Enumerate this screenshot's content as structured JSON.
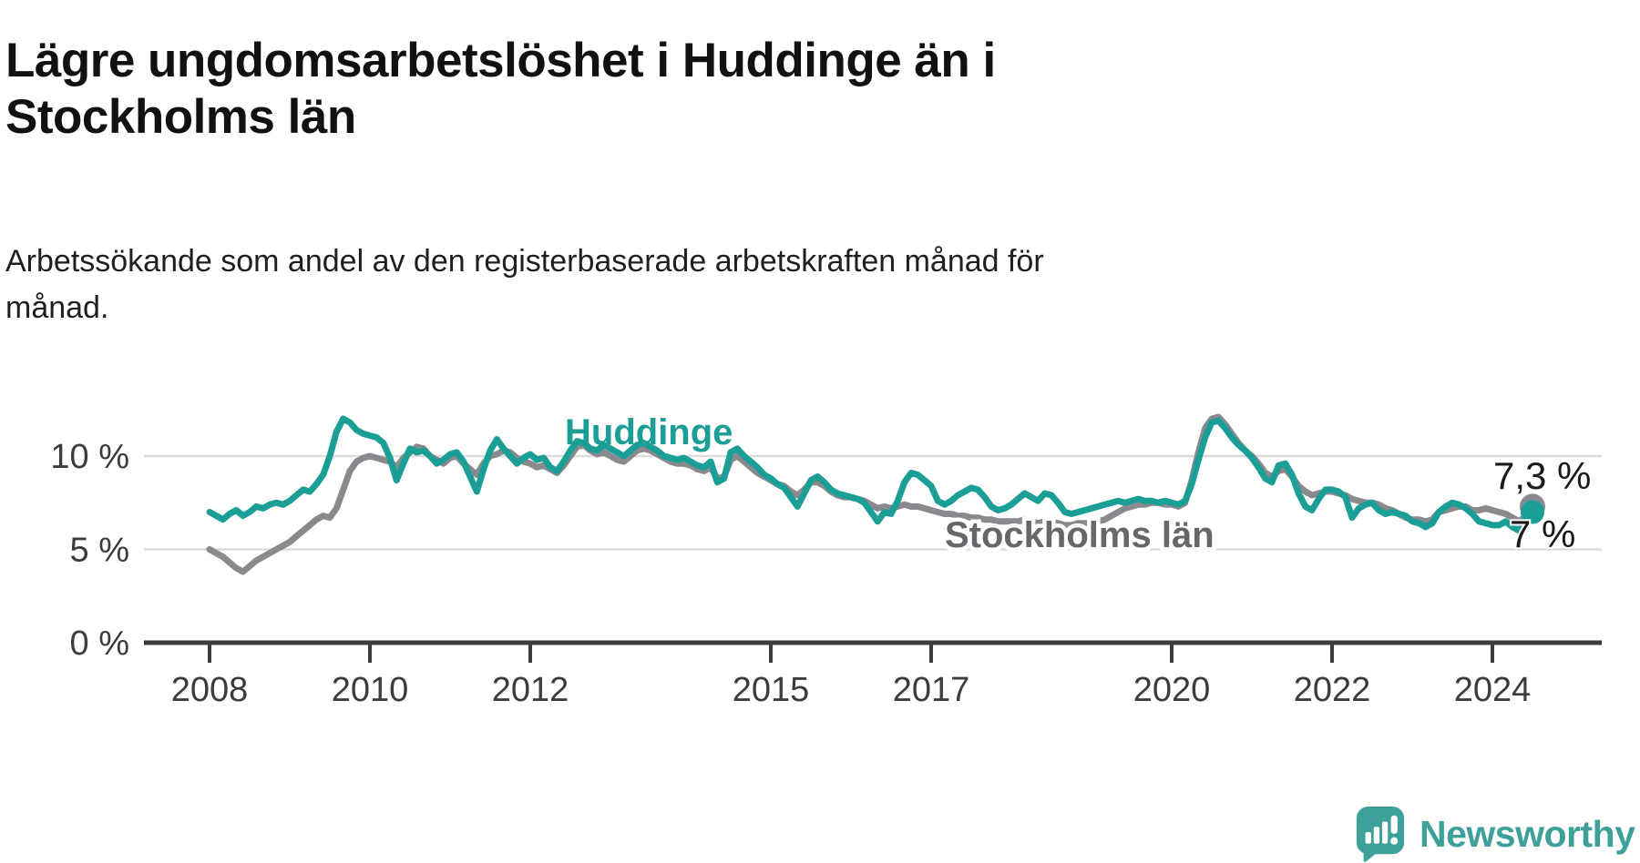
{
  "title": "Lägre ungdomsarbetslöshet i Huddinge än i\nStockholms län",
  "subtitle": "Arbetssökande som andel av den registerbaserade arbetskraften månad för\nmånad.",
  "branding": {
    "logo_text": "Newsworthy",
    "logo_icon": "newsworthy-speech-bubble-chart-icon",
    "logo_color": "#3da19a"
  },
  "chart_data": {
    "type": "line",
    "title": "",
    "xlabel": "",
    "ylabel": "",
    "unit": "%",
    "x_start_year": 2008,
    "x_step_months": 1,
    "x_end": "2024-07",
    "xlim": [
      2007.2,
      2025.3
    ],
    "ylim": [
      0,
      13.5
    ],
    "grid": "horizontal",
    "legend_position": "inline-labels",
    "xticks": [
      2008,
      2010,
      2012,
      2015,
      2017,
      2020,
      2022,
      2024
    ],
    "yticks": [
      {
        "value": 0,
        "label": "0 %"
      },
      {
        "value": 5,
        "label": "5 %"
      },
      {
        "value": 10,
        "label": "10 %"
      }
    ],
    "colors": {
      "grid": "#dcdcdc",
      "axis": "#3b3b3b",
      "tick_text": "#3c3c3c",
      "end_label_text": "#1a1a1a"
    },
    "series": [
      {
        "name": "Stockholms län",
        "color": "#8a8a8e",
        "label_color": "#66666b",
        "end_label": "7,3 %",
        "end_value": 7.3,
        "values": [
          5.0,
          4.8,
          4.6,
          4.3,
          4.0,
          3.8,
          4.1,
          4.4,
          4.6,
          4.8,
          5.0,
          5.2,
          5.4,
          5.7,
          6.0,
          6.3,
          6.6,
          6.8,
          6.7,
          7.2,
          8.2,
          9.2,
          9.7,
          9.9,
          10.0,
          9.9,
          9.8,
          9.7,
          9.4,
          9.9,
          10.2,
          10.5,
          10.4,
          10.0,
          9.8,
          9.6,
          9.9,
          10.0,
          9.6,
          9.3,
          9.0,
          9.6,
          10.0,
          10.1,
          10.3,
          10.2,
          9.9,
          9.7,
          9.6,
          9.4,
          9.5,
          9.3,
          9.1,
          9.5,
          10.0,
          10.5,
          10.6,
          10.3,
          10.1,
          10.2,
          10.0,
          9.8,
          9.7,
          10.0,
          10.3,
          10.4,
          10.3,
          10.1,
          9.9,
          9.7,
          9.6,
          9.6,
          9.5,
          9.3,
          9.2,
          9.4,
          8.8,
          8.9,
          9.8,
          10.0,
          9.7,
          9.4,
          9.1,
          8.9,
          8.7,
          8.5,
          8.4,
          8.1,
          7.9,
          8.2,
          8.6,
          8.6,
          8.4,
          8.1,
          7.9,
          7.8,
          7.8,
          7.7,
          7.6,
          7.4,
          7.2,
          7.3,
          7.2,
          7.3,
          7.4,
          7.3,
          7.3,
          7.2,
          7.1,
          7.0,
          6.9,
          6.9,
          6.8,
          6.8,
          6.7,
          6.7,
          6.6,
          6.6,
          6.5,
          6.5,
          6.5,
          6.5,
          6.6,
          6.5,
          6.4,
          6.5,
          6.5,
          6.4,
          6.3,
          6.3,
          6.4,
          6.4,
          6.4,
          6.5,
          6.6,
          6.8,
          7.0,
          7.2,
          7.3,
          7.4,
          7.4,
          7.5,
          7.5,
          7.4,
          7.4,
          7.3,
          7.5,
          8.7,
          10.2,
          11.5,
          12.0,
          12.1,
          11.7,
          11.2,
          10.7,
          10.3,
          10.0,
          9.6,
          9.1,
          8.9,
          9.2,
          9.3,
          8.9,
          8.4,
          8.1,
          7.9,
          8.0,
          8.1,
          8.1,
          8.0,
          7.9,
          7.7,
          7.6,
          7.5,
          7.5,
          7.4,
          7.2,
          7.1,
          6.9,
          6.7,
          6.6,
          6.6,
          6.5,
          6.6,
          7.0,
          7.1,
          7.2,
          7.3,
          7.3,
          7.1,
          7.1,
          7.2,
          7.1,
          7.0,
          6.9,
          6.7,
          6.5,
          6.8,
          7.3
        ]
      },
      {
        "name": "Huddinge",
        "color": "#1a9e96",
        "label_color": "#1a9e96",
        "end_label": "7 %",
        "end_value": 7.0,
        "values": [
          7.0,
          6.8,
          6.6,
          6.9,
          7.1,
          6.8,
          7.0,
          7.3,
          7.2,
          7.4,
          7.5,
          7.4,
          7.6,
          7.9,
          8.2,
          8.1,
          8.5,
          9.0,
          10.0,
          11.3,
          12.0,
          11.8,
          11.4,
          11.2,
          11.1,
          11.0,
          10.7,
          9.9,
          8.7,
          9.6,
          10.4,
          10.2,
          10.3,
          10.0,
          9.6,
          9.8,
          10.1,
          10.2,
          9.7,
          8.9,
          8.1,
          9.3,
          10.3,
          10.9,
          10.4,
          10.0,
          9.6,
          9.9,
          10.1,
          9.8,
          9.9,
          9.4,
          9.2,
          9.7,
          10.3,
          10.8,
          10.7,
          10.4,
          10.3,
          10.6,
          10.4,
          10.2,
          10.0,
          10.3,
          10.6,
          10.7,
          10.5,
          10.3,
          10.0,
          9.9,
          9.8,
          9.9,
          9.7,
          9.5,
          9.4,
          9.7,
          8.6,
          8.8,
          10.2,
          10.4,
          10.0,
          9.7,
          9.4,
          9.0,
          8.8,
          8.5,
          8.3,
          7.8,
          7.3,
          8.0,
          8.7,
          8.9,
          8.6,
          8.2,
          8.0,
          7.9,
          7.8,
          7.7,
          7.5,
          7.0,
          6.5,
          7.0,
          6.9,
          7.6,
          8.6,
          9.1,
          9.0,
          8.7,
          8.4,
          7.6,
          7.4,
          7.6,
          7.9,
          8.1,
          8.3,
          8.2,
          7.8,
          7.3,
          7.1,
          7.2,
          7.4,
          7.7,
          8.0,
          7.8,
          7.6,
          8.0,
          7.9,
          7.5,
          7.0,
          6.9,
          7.0,
          7.1,
          7.2,
          7.3,
          7.4,
          7.5,
          7.6,
          7.5,
          7.6,
          7.7,
          7.6,
          7.6,
          7.5,
          7.6,
          7.5,
          7.4,
          7.6,
          8.5,
          9.8,
          11.0,
          11.8,
          11.9,
          11.5,
          11.0,
          10.6,
          10.3,
          9.9,
          9.4,
          8.8,
          8.6,
          9.5,
          9.6,
          9.0,
          8.0,
          7.3,
          7.1,
          7.7,
          8.2,
          8.2,
          8.1,
          7.8,
          6.7,
          7.2,
          7.4,
          7.5,
          7.1,
          6.9,
          7.0,
          6.9,
          6.8,
          6.5,
          6.4,
          6.2,
          6.4,
          7.0,
          7.3,
          7.5,
          7.4,
          7.2,
          6.9,
          6.5,
          6.4,
          6.3,
          6.3,
          6.5,
          6.2,
          6.0,
          6.6,
          7.0
        ]
      }
    ]
  }
}
